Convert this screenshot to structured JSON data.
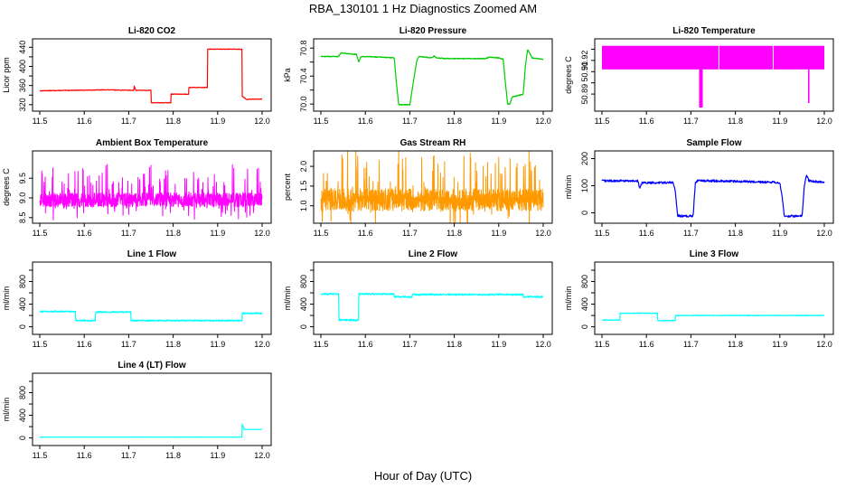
{
  "title": "RBA_130101  1 Hz Diagnostics Zoomed AM",
  "xlabel": "Hour of Day (UTC)",
  "x_ticks": [
    "11.5",
    "11.6",
    "11.7",
    "11.8",
    "11.9",
    "12.0"
  ],
  "chart_data": [
    {
      "type": "line",
      "title": "Li-820 CO2",
      "ylabel": "Licor ppm",
      "color": "#ff0000",
      "xlim": [
        11.5,
        12.0
      ],
      "ylim": [
        314,
        450
      ],
      "y_ticks": [
        320,
        340,
        360,
        380,
        400,
        420,
        440
      ],
      "y_tick_labels": [
        "320",
        "",
        "360",
        "",
        "400",
        "",
        "440"
      ],
      "noise": 0.6,
      "series": [
        {
          "name": "CO2",
          "x": [
            11.5,
            11.65,
            11.712,
            11.712,
            11.716,
            11.716,
            11.75,
            11.75,
            11.795,
            11.795,
            11.835,
            11.835,
            11.877,
            11.877,
            11.955,
            11.955,
            11.965,
            12.0
          ],
          "values": [
            349,
            351,
            350,
            360,
            350,
            350,
            350,
            324,
            324,
            342,
            342,
            356,
            356,
            436,
            436,
            338,
            331,
            332
          ]
        }
      ]
    },
    {
      "type": "line",
      "title": "Li-820 Pressure",
      "ylabel": "kPa",
      "color": "#00cc00",
      "xlim": [
        11.5,
        12.0
      ],
      "ylim": [
        69.95,
        70.88
      ],
      "y_ticks": [
        70.0,
        70.2,
        70.4,
        70.6,
        70.8
      ],
      "y_tick_labels": [
        "70.0",
        "",
        "70.4",
        "",
        "70.8"
      ],
      "noise": 0.006,
      "series": [
        {
          "name": "Pressure",
          "x": [
            11.5,
            11.54,
            11.545,
            11.58,
            11.585,
            11.59,
            11.64,
            11.665,
            11.67,
            11.675,
            11.7,
            11.715,
            11.72,
            11.75,
            11.755,
            11.76,
            11.78,
            11.87,
            11.88,
            11.9,
            11.91,
            11.915,
            11.92,
            11.925,
            11.93,
            11.955,
            11.96,
            11.965,
            11.975,
            12.0
          ],
          "values": [
            70.68,
            70.68,
            70.73,
            70.71,
            70.6,
            70.68,
            70.67,
            70.66,
            70.3,
            69.99,
            69.99,
            70.6,
            70.68,
            70.66,
            70.69,
            70.66,
            70.65,
            70.65,
            70.67,
            70.66,
            70.64,
            70.3,
            70.0,
            70.0,
            70.1,
            70.14,
            70.55,
            70.78,
            70.66,
            70.64
          ]
        }
      ]
    },
    {
      "type": "area",
      "title": "Li-820 Temperature",
      "ylabel": "degrees C",
      "color": "#ff00ff",
      "xlim": [
        11.5,
        12.0
      ],
      "ylim": [
        50.878,
        50.936
      ],
      "y_ticks": [
        50.89,
        50.9,
        50.91,
        50.92,
        50.93
      ],
      "y_tick_labels": [
        "50.89",
        "",
        "50.91",
        "50.92",
        ""
      ],
      "band": [
        50.912,
        50.933
      ],
      "spikes": [
        {
          "x": 11.72,
          "low": 50.878
        },
        {
          "x": 11.722,
          "low": 50.878
        },
        {
          "x": 11.725,
          "low": 50.878
        },
        {
          "x": 11.965,
          "low": 50.882
        }
      ],
      "gaps": [
        11.763,
        11.885
      ]
    },
    {
      "type": "line",
      "title": "Ambient Box Temperature",
      "ylabel": "degrees C",
      "color": "#ff00ff",
      "xlim": [
        11.5,
        12.0
      ],
      "ylim": [
        8.45,
        10.1
      ],
      "y_ticks": [
        8.5,
        9.0,
        9.5
      ],
      "y_tick_labels": [
        "8.5",
        "9.0",
        "9.5"
      ],
      "noise": 0.18,
      "spiky": true,
      "series": [
        {
          "name": "BoxT",
          "x": [
            11.5,
            12.0
          ],
          "values": [
            8.95,
            8.95
          ]
        }
      ]
    },
    {
      "type": "line",
      "title": "Gas Stream RH",
      "ylabel": "percent",
      "color": "#ff9900",
      "xlim": [
        11.5,
        12.0
      ],
      "ylim": [
        0.65,
        2.3
      ],
      "y_ticks": [
        1.0,
        1.5,
        2.0
      ],
      "y_tick_labels": [
        "1.0",
        "1.5",
        "2.0"
      ],
      "noise": 0.28,
      "spiky": true,
      "series": [
        {
          "name": "RH",
          "x": [
            11.5,
            12.0
          ],
          "values": [
            1.15,
            1.15
          ]
        }
      ]
    },
    {
      "type": "line",
      "title": "Sample Flow",
      "ylabel": "ml/min",
      "color": "#0000ff",
      "xlim": [
        11.5,
        12.0
      ],
      "ylim": [
        -25,
        215
      ],
      "y_ticks": [
        0,
        100,
        200
      ],
      "y_tick_labels": [
        "0",
        "100",
        "200"
      ],
      "noise": 4,
      "series": [
        {
          "name": "SampleFlow",
          "x": [
            11.5,
            11.58,
            11.585,
            11.59,
            11.66,
            11.665,
            11.67,
            11.675,
            11.705,
            11.71,
            11.715,
            11.75,
            11.9,
            11.905,
            11.91,
            11.95,
            11.955,
            11.96,
            11.965,
            12.0
          ],
          "values": [
            118,
            118,
            92,
            110,
            112,
            80,
            -10,
            -12,
            -12,
            110,
            118,
            118,
            112,
            60,
            -12,
            -12,
            100,
            140,
            118,
            112
          ]
        }
      ]
    },
    {
      "type": "line",
      "title": "Line 1 Flow",
      "ylabel": "ml/min",
      "color": "#00ffff",
      "xlim": [
        11.5,
        12.0
      ],
      "ylim": [
        -70,
        1080
      ],
      "y_ticks": [
        0,
        200,
        400,
        600,
        800,
        1000
      ],
      "y_tick_labels": [
        "0",
        "",
        "400",
        "",
        "800",
        ""
      ],
      "noise": 12,
      "series": [
        {
          "name": "Line1",
          "x": [
            11.5,
            11.58,
            11.58,
            11.625,
            11.625,
            11.705,
            11.705,
            11.955,
            11.955,
            12.0
          ],
          "values": [
            270,
            270,
            110,
            110,
            260,
            260,
            110,
            110,
            240,
            240
          ]
        }
      ]
    },
    {
      "type": "line",
      "title": "Line 2 Flow",
      "ylabel": "ml/min",
      "color": "#00ffff",
      "xlim": [
        11.5,
        12.0
      ],
      "ylim": [
        -70,
        1080
      ],
      "y_ticks": [
        0,
        200,
        400,
        600,
        800,
        1000
      ],
      "y_tick_labels": [
        "0",
        "",
        "400",
        "",
        "800",
        ""
      ],
      "noise": 14,
      "series": [
        {
          "name": "Line2",
          "x": [
            11.5,
            11.54,
            11.54,
            11.585,
            11.585,
            11.665,
            11.665,
            11.705,
            11.705,
            11.955,
            11.955,
            12.0
          ],
          "values": [
            580,
            580,
            120,
            120,
            580,
            580,
            530,
            530,
            570,
            570,
            530,
            530
          ]
        }
      ]
    },
    {
      "type": "line",
      "title": "Line 3 Flow",
      "ylabel": "ml/min",
      "color": "#00ffff",
      "xlim": [
        11.5,
        12.0
      ],
      "ylim": [
        -70,
        1080
      ],
      "y_ticks": [
        0,
        200,
        400,
        600,
        800,
        1000
      ],
      "y_tick_labels": [
        "0",
        "",
        "400",
        "",
        "800",
        ""
      ],
      "noise": 6,
      "series": [
        {
          "name": "Line3",
          "x": [
            11.5,
            11.54,
            11.54,
            11.625,
            11.625,
            11.665,
            11.665,
            12.0
          ],
          "values": [
            120,
            120,
            240,
            240,
            110,
            110,
            200,
            200
          ]
        }
      ]
    },
    {
      "type": "line",
      "title": "Line 4 (LT) Flow",
      "ylabel": "ml/min",
      "color": "#00ffff",
      "xlim": [
        11.5,
        12.0
      ],
      "ylim": [
        -70,
        1080
      ],
      "y_ticks": [
        0,
        200,
        400,
        600,
        800,
        1000
      ],
      "y_tick_labels": [
        "0",
        "",
        "400",
        "",
        "800",
        ""
      ],
      "noise": 2,
      "series": [
        {
          "name": "Line4",
          "x": [
            11.5,
            11.955,
            11.955,
            11.96,
            11.96,
            12.0
          ],
          "values": [
            15,
            15,
            250,
            150,
            150,
            150
          ]
        }
      ]
    }
  ]
}
